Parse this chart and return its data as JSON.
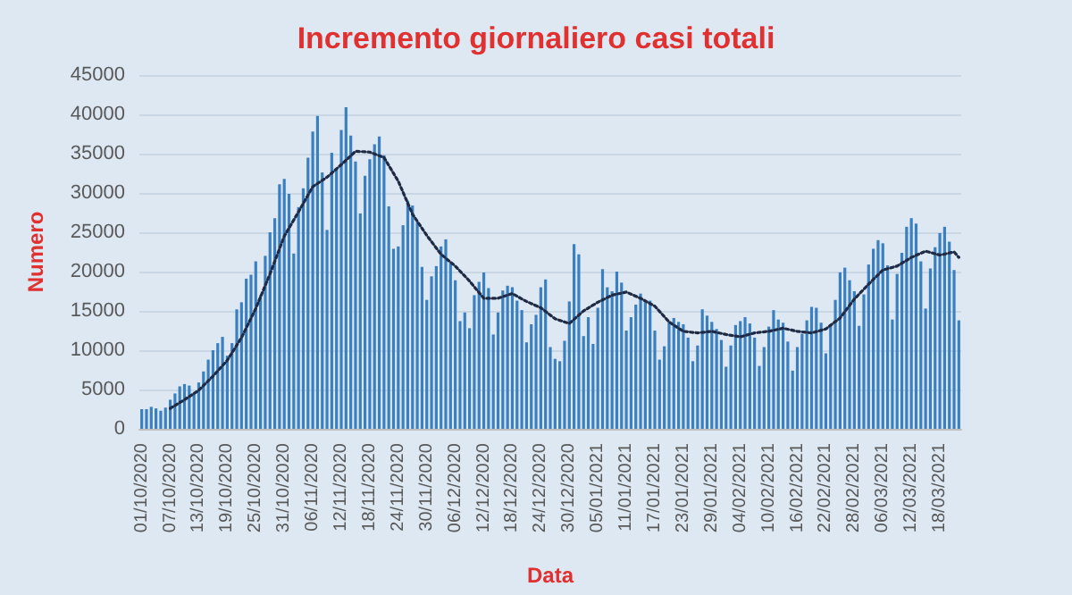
{
  "chart_data": {
    "type": "bar",
    "title": "Incremento giornaliero casi totali",
    "xlabel": "Data",
    "ylabel": "Numero",
    "categories": [
      "01/10/2020",
      null,
      null,
      null,
      null,
      null,
      "07/10/2020",
      null,
      null,
      null,
      null,
      null,
      "13/10/2020",
      null,
      null,
      null,
      null,
      null,
      "19/10/2020",
      null,
      null,
      null,
      null,
      null,
      "25/10/2020",
      null,
      null,
      null,
      null,
      null,
      "31/10/2020",
      null,
      null,
      null,
      null,
      null,
      "06/11/2020",
      null,
      null,
      null,
      null,
      null,
      "12/11/2020",
      null,
      null,
      null,
      null,
      null,
      "18/11/2020",
      null,
      null,
      null,
      null,
      null,
      "24/11/2020",
      null,
      null,
      null,
      null,
      null,
      "30/11/2020",
      null,
      null,
      null,
      null,
      null,
      "06/12/2020",
      null,
      null,
      null,
      null,
      null,
      "12/12/2020",
      null,
      null,
      null,
      null,
      null,
      "18/12/2020",
      null,
      null,
      null,
      null,
      null,
      "24/12/2020",
      null,
      null,
      null,
      null,
      null,
      "30/12/2020",
      null,
      null,
      null,
      null,
      null,
      "05/01/2021",
      null,
      null,
      null,
      null,
      null,
      "11/01/2021",
      null,
      null,
      null,
      null,
      null,
      "17/01/2021",
      null,
      null,
      null,
      null,
      null,
      "23/01/2021",
      null,
      null,
      null,
      null,
      null,
      "29/01/2021",
      null,
      null,
      null,
      null,
      null,
      "04/02/2021",
      null,
      null,
      null,
      null,
      null,
      "10/02/2021",
      null,
      null,
      null,
      null,
      null,
      "16/02/2021",
      null,
      null,
      null,
      null,
      null,
      "22/02/2021",
      null,
      null,
      null,
      null,
      null,
      "28/02/2021",
      null,
      null,
      null,
      null,
      null,
      "06/03/2021",
      null,
      null,
      null,
      null,
      null,
      "12/03/2021",
      null,
      null,
      null,
      null,
      null,
      "18/03/2021",
      null,
      null,
      null,
      null
    ],
    "series": [
      {
        "color": "#3a7fc0",
        "values": [
          2500,
          2500,
          2800,
          2600,
          2300,
          2700,
          3700,
          4500,
          5400,
          5700,
          5500,
          4600,
          5900,
          7300,
          8800,
          10000,
          10900,
          11700,
          9300,
          10900,
          15200,
          16100,
          19100,
          19600,
          21300,
          17000,
          22000,
          25000,
          26800,
          31100,
          31800,
          29900,
          22300,
          28200,
          30600,
          34500,
          37800,
          39800,
          32600,
          25300,
          35100,
          33000,
          38000,
          40900,
          37300,
          34000,
          27400,
          32200,
          34300,
          36200,
          37200,
          34800,
          28300,
          22900,
          23200,
          25900,
          29000,
          28400,
          26300,
          20600,
          16400,
          19400,
          20700,
          23200,
          24100,
          21100,
          18900,
          13700,
          14800,
          12800,
          17000,
          18700,
          19900,
          17900,
          12000,
          14800,
          17600,
          18200,
          18000,
          16300,
          15100,
          11000,
          13300,
          14500,
          18000,
          19000,
          10400,
          8900,
          8600,
          11200,
          16200,
          23500,
          22200,
          11800,
          14200,
          10800,
          15400,
          20300,
          18000,
          17500,
          20000,
          18600,
          12500,
          14200,
          15800,
          17200,
          16100,
          16300,
          12500,
          8800,
          10500,
          13600,
          14100,
          13600,
          13300,
          11600,
          8600,
          10600,
          15200,
          14400,
          13600,
          12700,
          11300,
          7900,
          10600,
          13200,
          13700,
          14200,
          13400,
          11600,
          8000,
          10400,
          13000,
          15100,
          13900,
          13500,
          11100,
          7400,
          10400,
          12100,
          13800,
          15500,
          15400,
          13500,
          9600,
          13300,
          16400,
          19900,
          20500,
          18900,
          17500,
          13100,
          17100,
          20900,
          22900,
          24000,
          23600,
          20800,
          13900,
          19700,
          22400,
          25700,
          26800,
          26100,
          21300,
          15300,
          20400,
          23100,
          24900,
          25700,
          23800,
          20200,
          13800
        ]
      },
      {
        "type": "line",
        "color": "#1f2a44",
        "line_style": "dotted",
        "marker": "none",
        "values": [
          null,
          null,
          null,
          null,
          null,
          null,
          2600,
          null,
          null,
          3700,
          null,
          null,
          4900,
          null,
          null,
          6700,
          null,
          null,
          8700,
          null,
          null,
          11600,
          null,
          null,
          15300,
          null,
          null,
          19700,
          null,
          null,
          24500,
          null,
          null,
          27600,
          null,
          null,
          30800,
          null,
          null,
          32000,
          null,
          null,
          33600,
          null,
          null,
          35300,
          null,
          null,
          35200,
          null,
          null,
          34500,
          null,
          null,
          31500,
          null,
          null,
          27300,
          null,
          null,
          24600,
          null,
          null,
          22200,
          null,
          null,
          20700,
          null,
          null,
          18800,
          null,
          null,
          16600,
          null,
          null,
          16600,
          null,
          null,
          17200,
          null,
          null,
          16200,
          null,
          null,
          15400,
          null,
          null,
          14000,
          null,
          null,
          13400,
          null,
          null,
          15000,
          null,
          null,
          16100,
          null,
          null,
          17000,
          null,
          null,
          17400,
          null,
          null,
          16600,
          null,
          null,
          15600,
          null,
          null,
          13600,
          null,
          null,
          12400,
          null,
          null,
          12200,
          null,
          null,
          12400,
          null,
          null,
          12000,
          null,
          null,
          11700,
          null,
          null,
          12200,
          null,
          null,
          12400,
          null,
          null,
          12800,
          null,
          null,
          12400,
          null,
          null,
          12200,
          null,
          null,
          12700,
          null,
          null,
          14100,
          null,
          null,
          16500,
          null,
          null,
          18400,
          null,
          null,
          20200,
          null,
          null,
          20700,
          null,
          null,
          21800,
          null,
          null,
          22600,
          null,
          null,
          22100,
          null,
          null,
          22500,
          21800
        ]
      }
    ],
    "ylim": [
      0,
      45000
    ],
    "yticks": [
      0,
      5000,
      10000,
      15000,
      20000,
      25000,
      30000,
      35000,
      40000,
      45000
    ],
    "grid": "y"
  }
}
